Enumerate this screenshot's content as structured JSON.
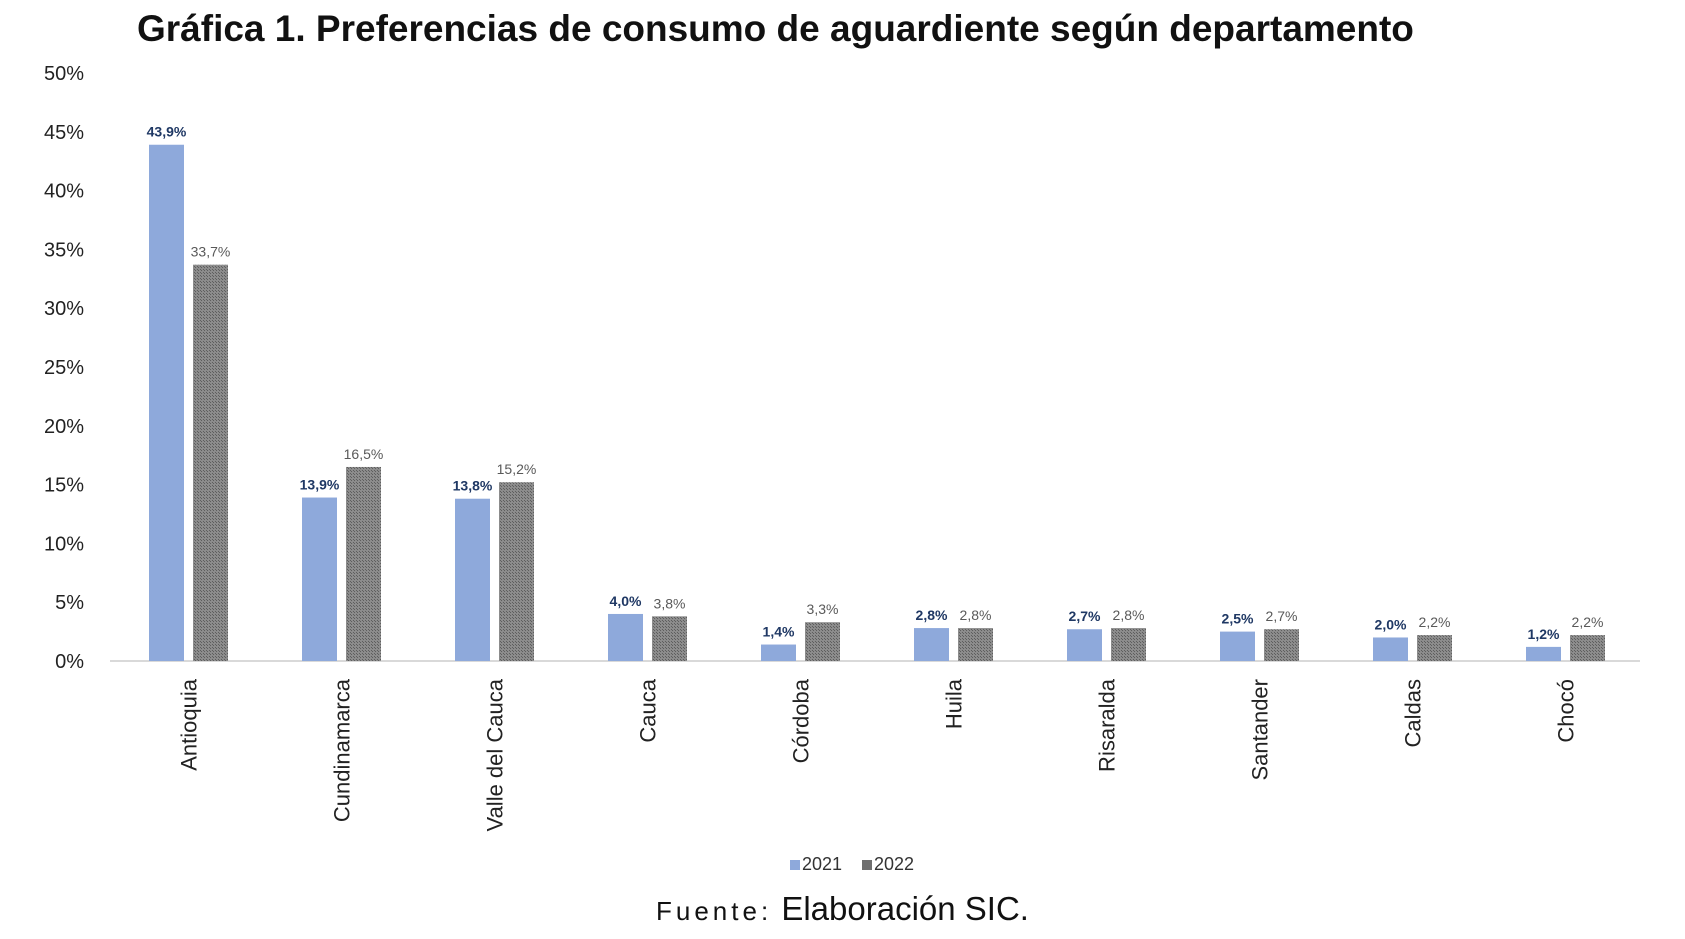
{
  "chart_data": {
    "type": "bar",
    "title": "Gráfica 1. Preferencias de consumo de aguardiente según departamento",
    "categories": [
      "Antioquia",
      "Cundinamarca",
      "Valle del Cauca",
      "Cauca",
      "Córdoba",
      "Huila",
      "Risaralda",
      "Santander",
      "Caldas",
      "Chocó"
    ],
    "series": [
      {
        "name": "2021",
        "color": "#8EA9DB",
        "values": [
          43.9,
          13.9,
          13.8,
          4.0,
          1.4,
          2.8,
          2.7,
          2.5,
          2.0,
          1.2
        ],
        "labels": [
          "43,9%",
          "13,9%",
          "13,8%",
          "4,0%",
          "1,4%",
          "2,8%",
          "2,7%",
          "2,5%",
          "2,0%",
          "1,2%"
        ],
        "label_color": "#1F3864"
      },
      {
        "name": "2022",
        "color": "#7F7F7F",
        "values": [
          33.7,
          16.5,
          15.2,
          3.8,
          3.3,
          2.8,
          2.8,
          2.7,
          2.2,
          2.2
        ],
        "labels": [
          "33,7%",
          "16,5%",
          "15,2%",
          "3,8%",
          "3,3%",
          "2,8%",
          "2,8%",
          "2,7%",
          "2,2%",
          "2,2%"
        ],
        "label_color": "#595959"
      }
    ],
    "ylim": [
      0,
      50
    ],
    "yticks": [
      "0%",
      "5%",
      "10%",
      "15%",
      "20%",
      "25%",
      "30%",
      "35%",
      "40%",
      "45%",
      "50%"
    ],
    "grid": false,
    "legend": "bottom-center"
  },
  "source": {
    "prefix": "Fuente:",
    "text": "Elaboración SIC."
  }
}
